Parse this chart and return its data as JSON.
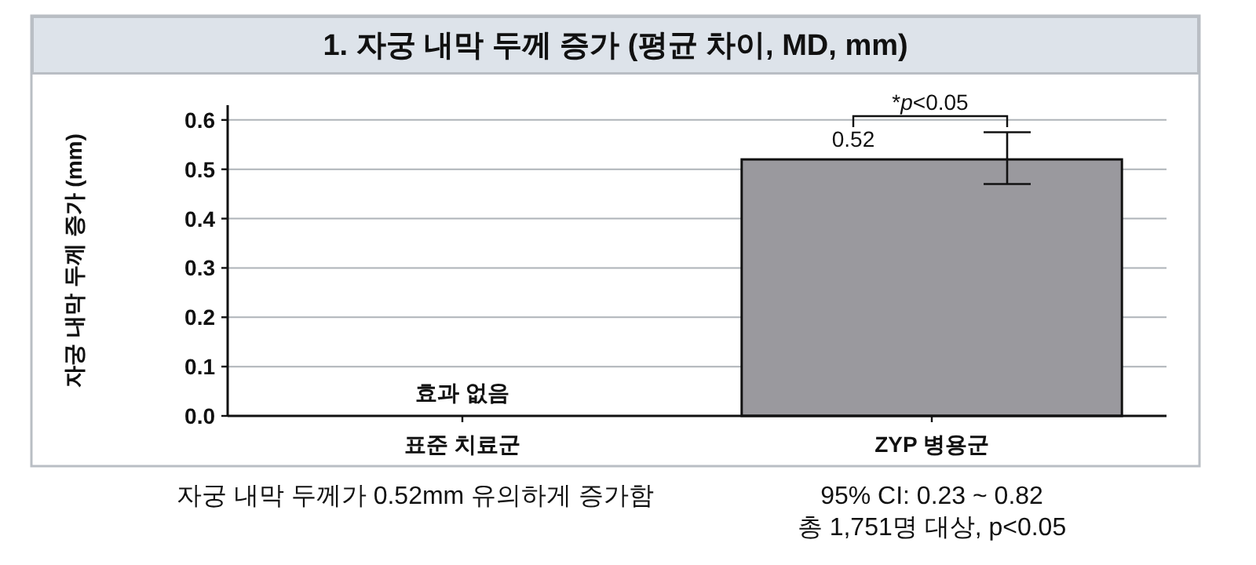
{
  "chart_data": {
    "type": "bar",
    "title": "1. 자궁 내막 두께 증가 (평균 차이, MD, mm)",
    "ylabel": "자궁 내막 두께 증가 (mm)",
    "categories": [
      "표준 치료군",
      "ZYP 병용군"
    ],
    "values": [
      0,
      0.52
    ],
    "value_labels": [
      null,
      "0.52"
    ],
    "errors": [
      null,
      [
        0.47,
        0.575
      ]
    ],
    "color": "#9a999e",
    "ylim": [
      0,
      0.63
    ],
    "yticks": [
      {
        "value": 0,
        "label": "0.0"
      },
      0.1,
      0.2,
      0.3,
      0.4,
      0.5,
      0.6
    ],
    "grid": "y",
    "annotations": [
      {
        "text": "효과 없음",
        "x": "표준 치료군",
        "y": 0
      },
      "*p<0.05",
      "자궁 내막 두께가 0.52mm 유의하게 증가함",
      "95% CI: 0.23 ~ 0.82",
      "총 1,751명 대상, p<0.05"
    ]
  }
}
